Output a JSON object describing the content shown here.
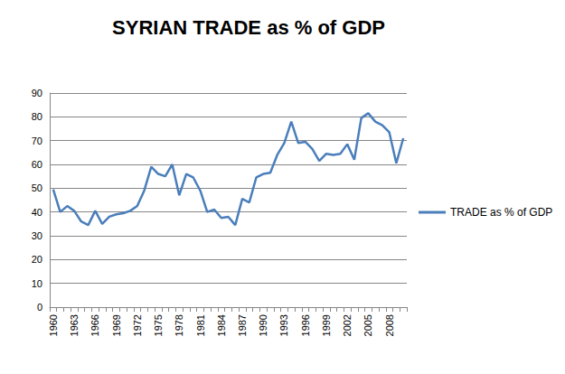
{
  "chart_data": {
    "type": "line",
    "title": "SYRIAN TRADE as % of GDP",
    "categories": [
      "1960",
      null,
      null,
      "1963",
      null,
      null,
      "1966",
      null,
      null,
      "1969",
      null,
      null,
      "1972",
      null,
      null,
      "1975",
      null,
      null,
      "1978",
      null,
      null,
      "1981",
      null,
      null,
      "1984",
      null,
      null,
      "1987",
      null,
      null,
      "1990",
      null,
      null,
      "1993",
      null,
      null,
      "1996",
      null,
      null,
      "1999",
      null,
      null,
      "2002",
      null,
      null,
      "2005",
      null,
      null,
      "2008",
      null,
      null
    ],
    "series": [
      {
        "name": "TRADE as % of GDP",
        "color": "#4a7ebb",
        "values": [
          49.5,
          40,
          42.5,
          40.5,
          36,
          34.5,
          40.5,
          35,
          38,
          39,
          39.5,
          40.5,
          42.5,
          49,
          59,
          56,
          55,
          60,
          47,
          56,
          54.5,
          49,
          40,
          41,
          37.5,
          38,
          34.5,
          45.5,
          44,
          54.5,
          56,
          56.5,
          64,
          69,
          78,
          69,
          69.5,
          66.5,
          61.5,
          64.5,
          64,
          64.5,
          68.5,
          62,
          79.5,
          81.5,
          78,
          76.5,
          73.5,
          60.5,
          71
        ]
      }
    ],
    "ylim": [
      0,
      90
    ],
    "yticks": [
      0,
      10,
      20,
      30,
      40,
      50,
      60,
      70,
      80,
      90
    ],
    "grid": true,
    "legend": "right"
  }
}
